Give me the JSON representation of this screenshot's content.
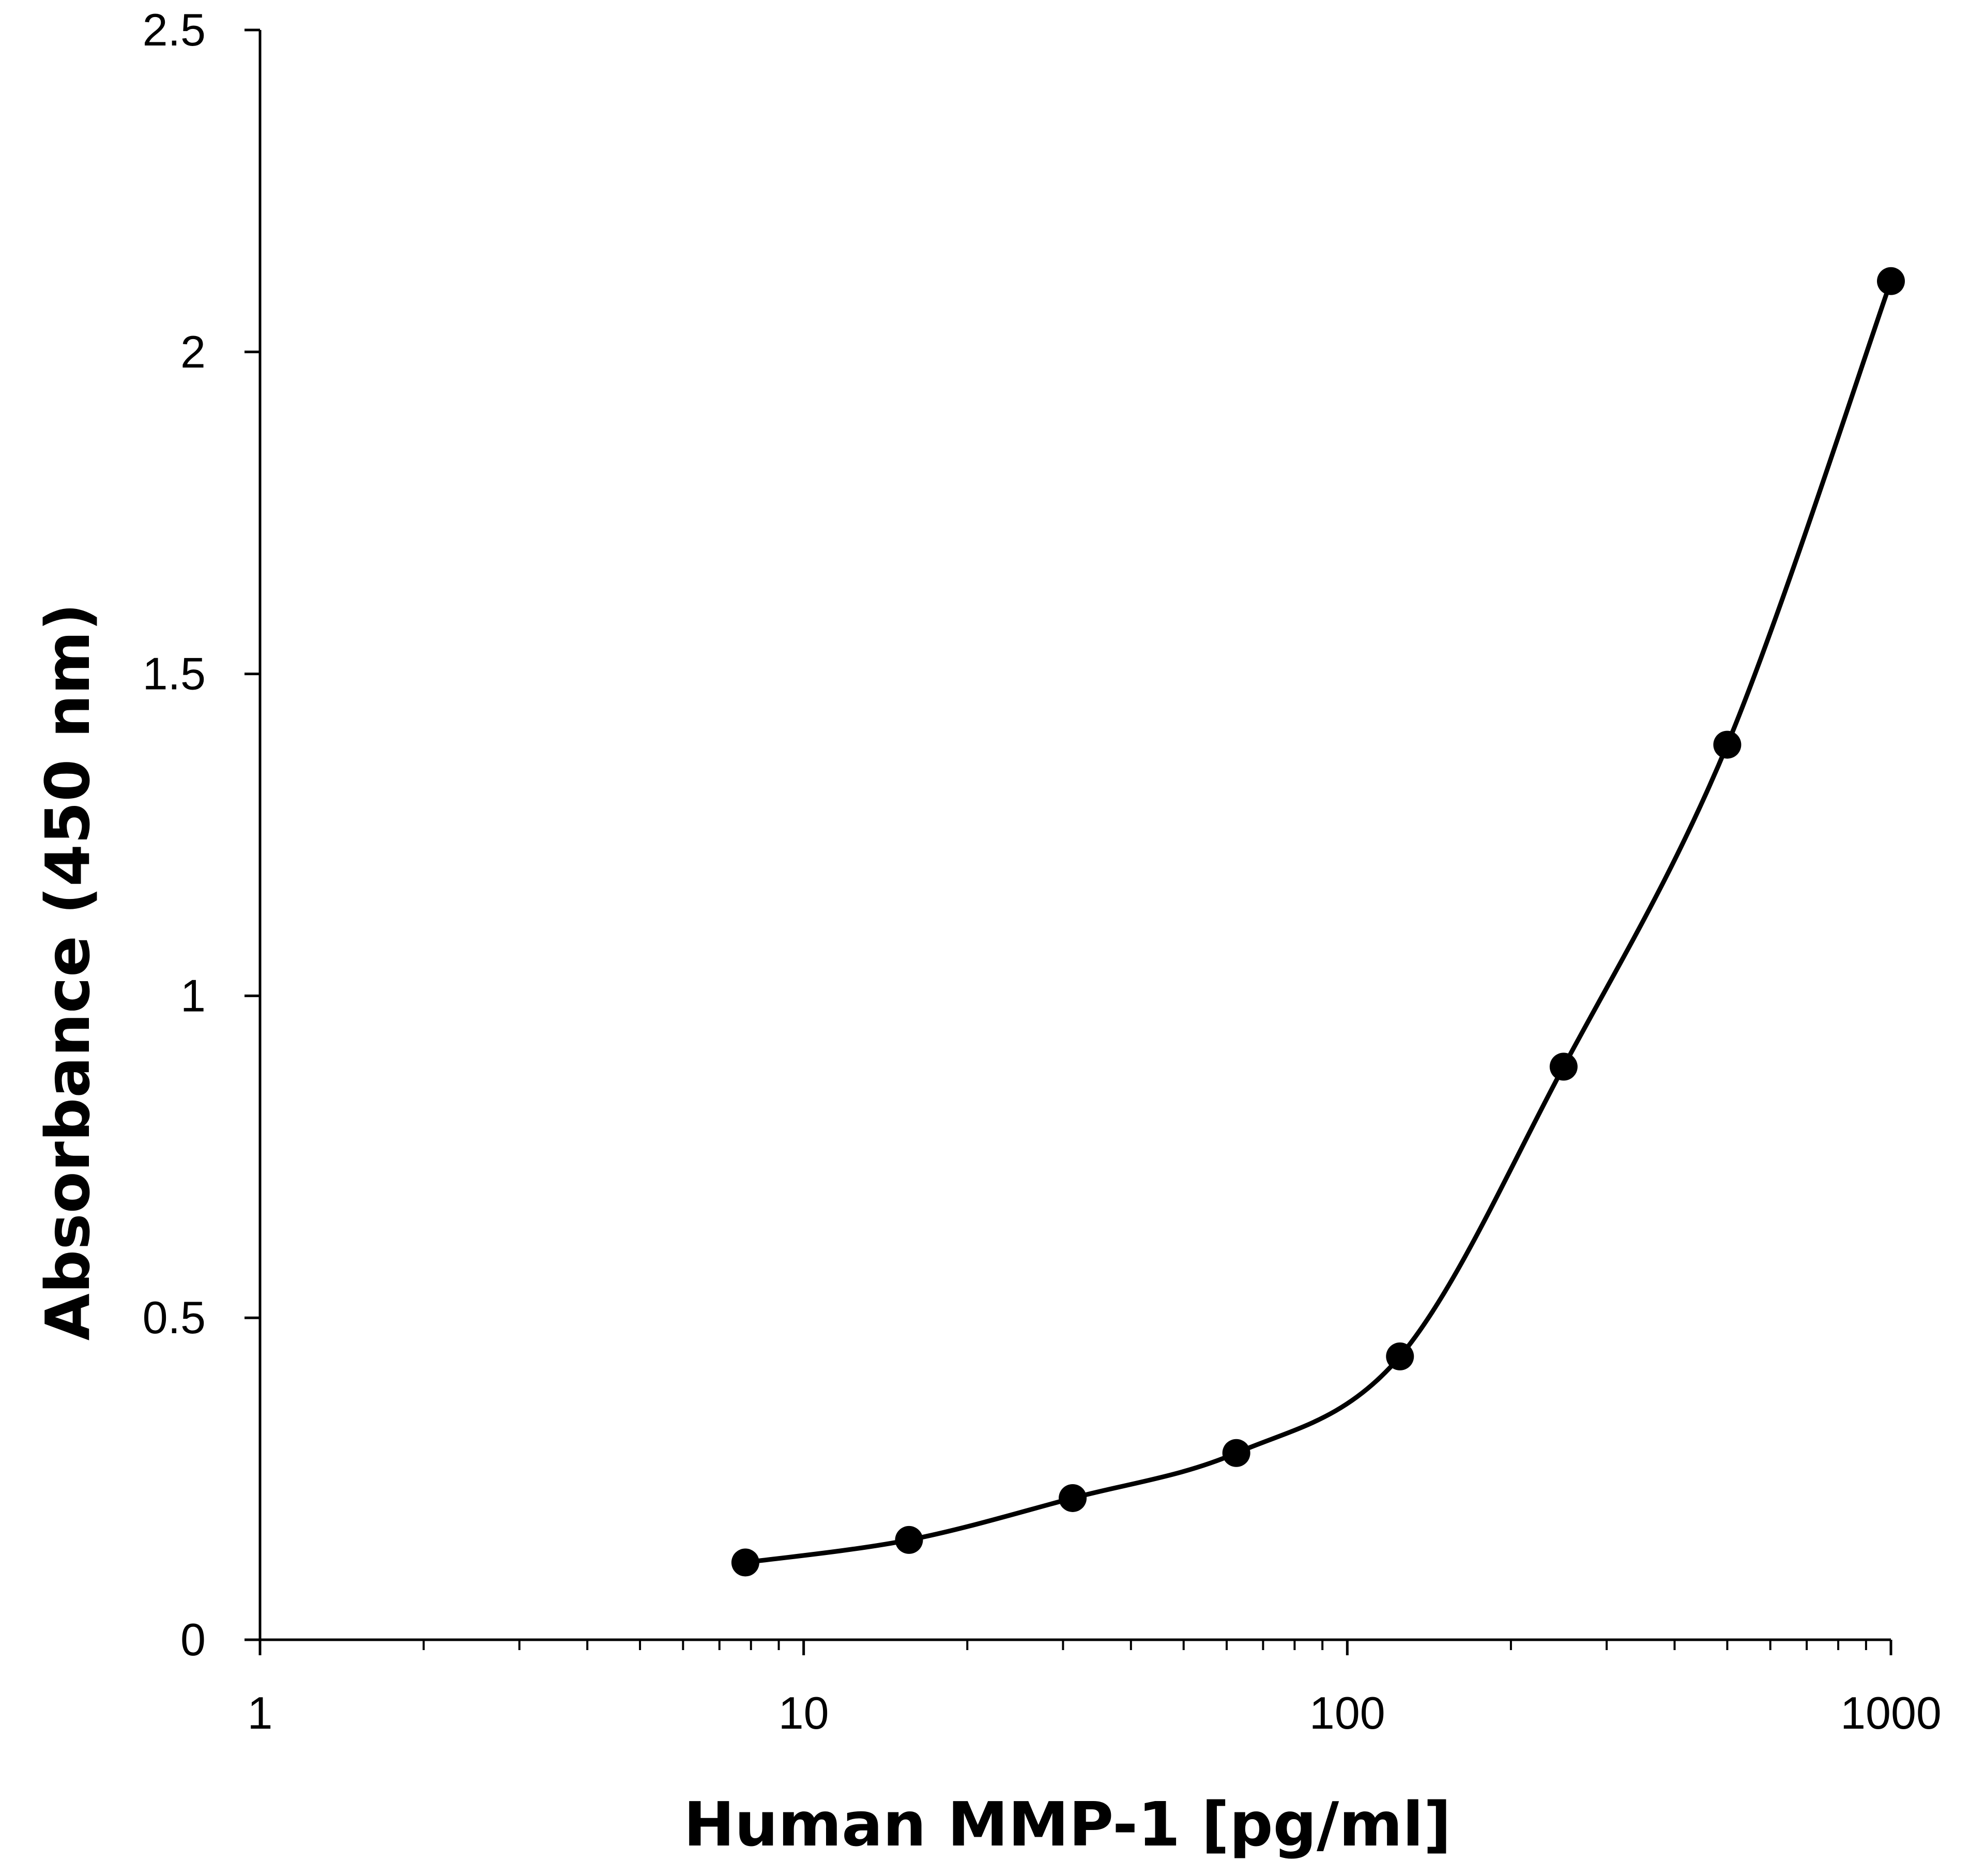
{
  "chart_data": {
    "type": "scatter",
    "title": "",
    "xlabel": "Human MMP-1 [pg/ml]",
    "ylabel": "Absorbance (450 nm)",
    "x_scale": "log",
    "xlim": [
      1,
      1000
    ],
    "ylim": [
      0,
      2.5
    ],
    "x_ticks": [
      1,
      10,
      100,
      1000
    ],
    "x_tick_labels": [
      "1",
      "10",
      "100",
      "1000"
    ],
    "y_ticks": [
      0,
      0.5,
      1,
      1.5,
      2,
      2.5
    ],
    "y_tick_labels": [
      "0",
      "0.5",
      "1",
      "1.5",
      "2",
      "2.5"
    ],
    "grid": false,
    "legend": "none",
    "line": "smooth",
    "color": "#000000",
    "series": [
      {
        "x": [
          7.8125,
          15.625,
          31.25,
          62.5,
          125,
          250,
          500,
          1000
        ],
        "y": [
          0.12,
          0.155,
          0.22,
          0.29,
          0.44,
          0.89,
          1.39,
          2.11
        ]
      }
    ]
  }
}
